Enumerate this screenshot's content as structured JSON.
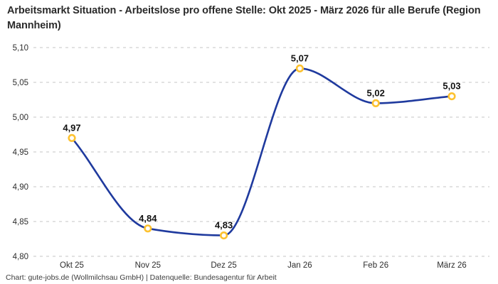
{
  "header": {
    "title": "Arbeitsmarkt Situation - Arbeitslose pro offene Stelle: Okt 2025 - März 2026 für alle Berufe (Region Mannheim)"
  },
  "footer": {
    "attribution": "Chart: gute-jobs.de (Wollmilchsau GmbH) | Datenquelle: Bundesagentur für Arbeit"
  },
  "chart_data": {
    "type": "line",
    "title": "Arbeitsmarkt Situation - Arbeitslose pro offene Stelle: Okt 2025 - März 2026 für alle Berufe (Region Mannheim)",
    "categories": [
      "Okt 25",
      "Nov 25",
      "Dez 25",
      "Jan 26",
      "Feb 26",
      "März 26"
    ],
    "series": [
      {
        "name": "Arbeitslose pro offene Stelle",
        "values": [
          4.97,
          4.84,
          4.83,
          5.07,
          5.02,
          5.03
        ],
        "value_labels": [
          "4,97",
          "4,84",
          "4,83",
          "5,07",
          "5,02",
          "5,03"
        ]
      }
    ],
    "y_ticks": [
      {
        "value": 5.1,
        "label": "5,10"
      },
      {
        "value": 5.05,
        "label": "5,05"
      },
      {
        "value": 5.0,
        "label": "5,00"
      },
      {
        "value": 4.95,
        "label": "4,95"
      },
      {
        "value": 4.9,
        "label": "4,90"
      },
      {
        "value": 4.85,
        "label": "4,85"
      },
      {
        "value": 4.8,
        "label": "4,80"
      }
    ],
    "ylim": [
      4.8,
      5.1
    ],
    "xlabel": "",
    "ylabel": "",
    "grid": "horizontal-dashed",
    "legend_position": "none",
    "curve": "smooth",
    "decimal_separator": ",",
    "colors": {
      "line": "#1f3a9e",
      "marker_ring": "#fdc230",
      "marker_fill": "#ffffff",
      "grid": "#c6c6c6",
      "value_label": "#121212",
      "tick_label": "#2e2e2e",
      "title": "#2b2b2b",
      "attribution": "#3c3c3c",
      "background": "#ffffff"
    }
  }
}
